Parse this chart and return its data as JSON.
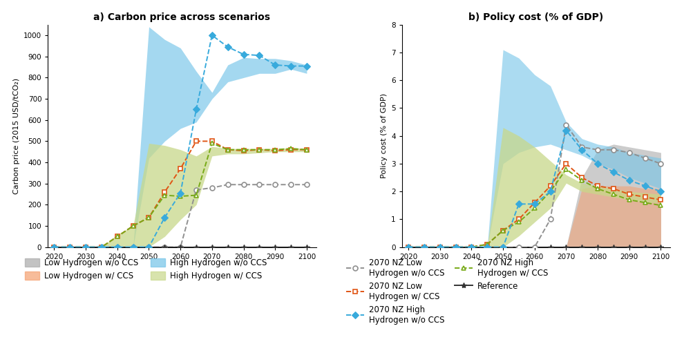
{
  "years": [
    2020,
    2025,
    2030,
    2035,
    2040,
    2045,
    2050,
    2055,
    2060,
    2065,
    2070,
    2075,
    2080,
    2085,
    2090,
    2095,
    2100
  ],
  "carbon": {
    "low_h2_no_ccs_lower": [
      0,
      0,
      0,
      0,
      0,
      0,
      0,
      0,
      0,
      0,
      0,
      0,
      0,
      0,
      0,
      0,
      0
    ],
    "low_h2_no_ccs_upper": [
      0,
      0,
      0,
      0,
      0,
      0,
      0,
      0,
      0,
      0,
      0,
      0,
      0,
      0,
      0,
      0,
      0
    ],
    "low_h2_ccs_lower": [
      0,
      0,
      0,
      0,
      0,
      0,
      0,
      0,
      0,
      0,
      0,
      0,
      0,
      0,
      0,
      0,
      0
    ],
    "low_h2_ccs_upper": [
      0,
      0,
      0,
      0,
      0,
      0,
      0,
      0,
      0,
      0,
      0,
      0,
      0,
      0,
      0,
      0,
      0
    ],
    "high_h2_no_ccs_lower": [
      0,
      0,
      0,
      0,
      0,
      0,
      420,
      500,
      560,
      590,
      700,
      780,
      800,
      820,
      820,
      840,
      820
    ],
    "high_h2_no_ccs_upper": [
      0,
      0,
      0,
      0,
      0,
      0,
      1040,
      980,
      940,
      830,
      730,
      860,
      895,
      890,
      890,
      880,
      860
    ],
    "high_h2_ccs_lower": [
      0,
      0,
      0,
      0,
      0,
      0,
      0,
      50,
      130,
      200,
      430,
      440,
      440,
      445,
      450,
      450,
      450
    ],
    "high_h2_ccs_upper": [
      0,
      0,
      0,
      0,
      60,
      100,
      490,
      480,
      460,
      430,
      475,
      465,
      465,
      465,
      465,
      470,
      465
    ],
    "nz_low_no_ccs": [
      0,
      0,
      0,
      0,
      0,
      0,
      0,
      0,
      0,
      270,
      280,
      295,
      295,
      295,
      295,
      295,
      295
    ],
    "nz_low_ccs": [
      0,
      0,
      0,
      0,
      50,
      100,
      140,
      260,
      370,
      500,
      500,
      460,
      455,
      460,
      455,
      460,
      460
    ],
    "nz_high_no_ccs": [
      0,
      0,
      0,
      0,
      0,
      0,
      0,
      140,
      255,
      650,
      1000,
      945,
      910,
      905,
      860,
      855,
      855
    ],
    "nz_high_ccs": [
      0,
      0,
      0,
      0,
      50,
      100,
      140,
      245,
      240,
      245,
      490,
      460,
      460,
      460,
      460,
      465,
      460
    ],
    "reference": [
      0,
      0,
      0,
      0,
      0,
      0,
      0,
      0,
      0,
      0,
      0,
      0,
      0,
      0,
      0,
      0,
      0
    ]
  },
  "policy": {
    "low_h2_no_ccs_lower": [
      0,
      0,
      0,
      0,
      0,
      0,
      0,
      0,
      0,
      0,
      0,
      0,
      0,
      0,
      0,
      0,
      0
    ],
    "low_h2_no_ccs_upper": [
      0,
      0,
      0,
      0,
      0,
      0,
      0,
      0,
      0,
      0,
      0,
      2.5,
      3.5,
      3.7,
      3.6,
      3.5,
      3.4
    ],
    "low_h2_ccs_lower": [
      0,
      0,
      0,
      0,
      0,
      0,
      0,
      0,
      0,
      0,
      0,
      0,
      0,
      0,
      0,
      0,
      0
    ],
    "low_h2_ccs_upper": [
      0,
      0,
      0,
      0,
      0,
      0,
      0,
      0,
      0,
      0,
      0,
      2.1,
      2.2,
      2.2,
      2.2,
      2.1,
      2.1
    ],
    "high_h2_no_ccs_lower": [
      0,
      0,
      0,
      0,
      0,
      0,
      3.0,
      3.4,
      3.6,
      3.7,
      3.5,
      3.3,
      3.0,
      2.8,
      2.5,
      2.3,
      2.1
    ],
    "high_h2_no_ccs_upper": [
      0,
      0,
      0,
      0,
      0,
      0,
      7.1,
      6.8,
      6.2,
      5.8,
      4.5,
      3.9,
      3.7,
      3.6,
      3.4,
      3.3,
      3.2
    ],
    "high_h2_ccs_lower": [
      0,
      0,
      0,
      0,
      0,
      0,
      0,
      0.4,
      0.9,
      1.4,
      2.3,
      2.0,
      1.9,
      1.8,
      1.7,
      1.6,
      1.6
    ],
    "high_h2_ccs_upper": [
      0,
      0,
      0,
      0,
      0,
      0,
      4.3,
      4.0,
      3.6,
      3.1,
      2.6,
      2.3,
      2.2,
      2.1,
      2.0,
      1.95,
      1.9
    ],
    "nz_low_no_ccs": [
      0,
      0,
      0,
      0,
      0,
      0,
      0,
      0,
      0,
      1.0,
      4.4,
      3.6,
      3.5,
      3.5,
      3.4,
      3.2,
      3.0
    ],
    "nz_low_ccs": [
      0,
      0,
      0,
      0,
      0,
      0.1,
      0.6,
      1.0,
      1.6,
      2.2,
      3.0,
      2.5,
      2.2,
      2.1,
      1.9,
      1.8,
      1.7
    ],
    "nz_high_no_ccs": [
      0,
      0,
      0,
      0,
      0,
      0,
      0,
      1.55,
      1.55,
      2.0,
      4.2,
      3.5,
      3.0,
      2.7,
      2.4,
      2.2,
      2.0
    ],
    "nz_high_ccs": [
      0,
      0,
      0,
      0,
      0,
      0.1,
      0.6,
      0.9,
      1.4,
      2.0,
      2.8,
      2.4,
      2.1,
      1.9,
      1.7,
      1.6,
      1.5
    ],
    "reference": [
      0,
      0,
      0,
      0,
      0,
      0,
      0,
      0,
      0,
      0,
      0,
      0,
      0,
      0,
      0,
      0,
      0
    ]
  },
  "colors": {
    "low_h2_no_ccs": "#aaaaaa",
    "low_h2_ccs": "#f4a070",
    "high_h2_no_ccs": "#74c4e8",
    "high_h2_ccs": "#c8d88a",
    "nz_low_no_ccs": "#909090",
    "nz_low_ccs": "#e05515",
    "nz_high_no_ccs": "#38aadc",
    "nz_high_ccs": "#78aa18",
    "reference": "#333333"
  },
  "title_a": "a) Carbon price across scenarios",
  "title_b": "b) Policy cost (% of GDP)",
  "ylabel_a": "Carbon price (2015 USD/tCO₂)",
  "ylabel_b": "Policy cost (% of GDP)",
  "ylim_a": [
    0,
    1050
  ],
  "ylim_b": [
    0,
    8
  ],
  "yticks_a": [
    0,
    100,
    200,
    300,
    400,
    500,
    600,
    700,
    800,
    900,
    1000
  ],
  "yticks_b": [
    0,
    1,
    2,
    3,
    4,
    5,
    6,
    7,
    8
  ],
  "xticks": [
    2020,
    2030,
    2040,
    2050,
    2060,
    2070,
    2080,
    2090,
    2100
  ]
}
